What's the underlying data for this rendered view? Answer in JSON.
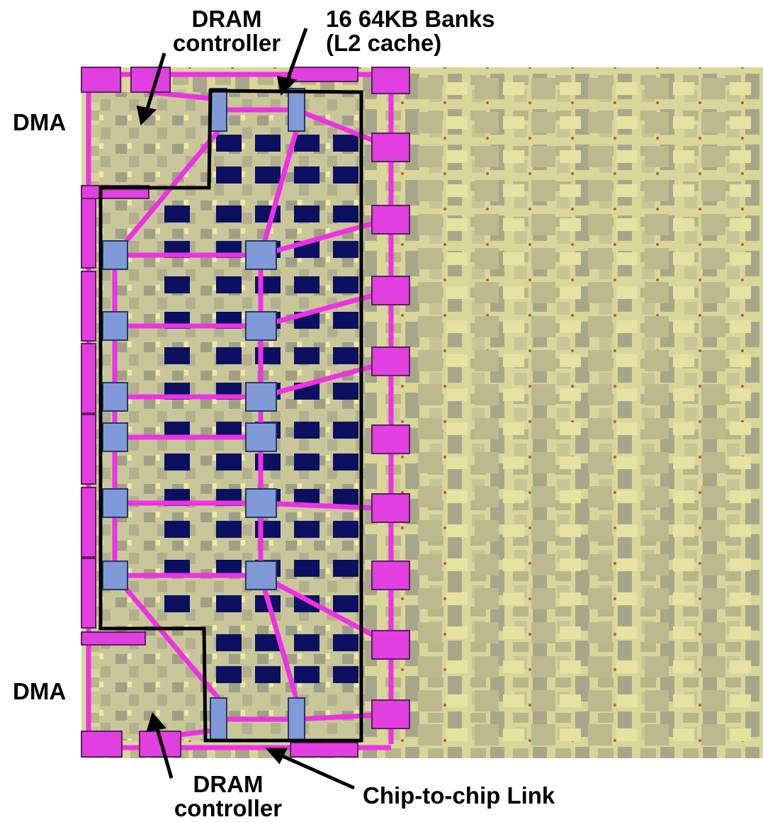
{
  "annotations": {
    "top_dram": [
      "DRAM",
      "controller"
    ],
    "banks": [
      "16 64KB Banks",
      "(L2 cache)"
    ],
    "dma_top": "DMA",
    "dma_bottom": "DMA",
    "bottom_dram": [
      "DRAM",
      "controller"
    ],
    "link": "Chip-to-chip Link"
  }
}
